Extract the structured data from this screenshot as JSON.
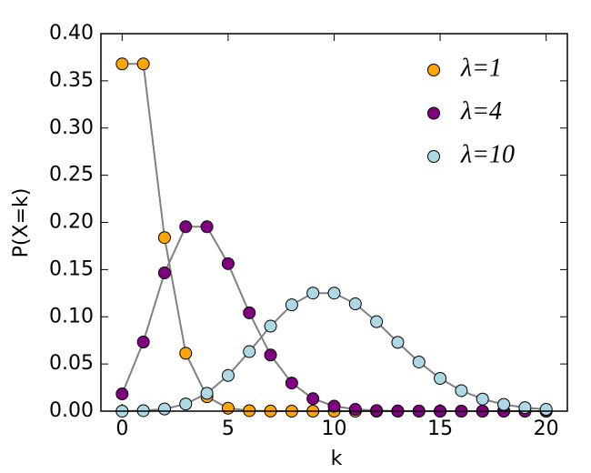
{
  "chart_data": {
    "type": "line",
    "xlabel": "k",
    "ylabel": "P(X=k)",
    "x": [
      0,
      1,
      2,
      3,
      4,
      5,
      6,
      7,
      8,
      9,
      10,
      11,
      12,
      13,
      14,
      15,
      16,
      17,
      18,
      19,
      20
    ],
    "series": [
      {
        "name": "λ=1",
        "color": "#ffa500",
        "values": [
          0.3679,
          0.3679,
          0.1839,
          0.0613,
          0.0153,
          0.0031,
          0.0005,
          0.0001,
          0,
          0,
          0,
          0,
          0,
          0,
          0,
          0,
          0,
          0,
          0,
          0,
          0
        ]
      },
      {
        "name": "λ=4",
        "color": "#800080",
        "values": [
          0.0183,
          0.0733,
          0.1465,
          0.1954,
          0.1954,
          0.1563,
          0.1042,
          0.0595,
          0.0298,
          0.0132,
          0.0053,
          0.0019,
          0.0006,
          0.0002,
          0.0001,
          0,
          0,
          0,
          0,
          0,
          0
        ]
      },
      {
        "name": "λ=10",
        "color": "#add8e6",
        "values": [
          0,
          0.0005,
          0.0023,
          0.0076,
          0.0189,
          0.0378,
          0.0631,
          0.0901,
          0.1126,
          0.1251,
          0.1251,
          0.1137,
          0.0948,
          0.0729,
          0.0521,
          0.0347,
          0.0217,
          0.0128,
          0.0071,
          0.0037,
          0.0019
        ]
      }
    ],
    "line_color": "#808080",
    "xlim": [
      -1,
      21
    ],
    "xticks": [
      0,
      5,
      10,
      15,
      20
    ],
    "ylim": [
      0,
      0.4
    ],
    "yticks": [
      {
        "value": 0,
        "label": "0.00"
      },
      {
        "value": 0.05,
        "label": "0.05"
      },
      {
        "value": 0.1,
        "label": "0.10"
      },
      {
        "value": 0.15,
        "label": "0.15"
      },
      {
        "value": 0.2,
        "label": "0.20"
      },
      {
        "value": 0.25,
        "label": "0.25"
      },
      {
        "value": 0.3,
        "label": "0.30"
      },
      {
        "value": 0.35,
        "label": "0.35"
      },
      {
        "value": 0.4,
        "label": "0.40"
      }
    ],
    "grid": false,
    "legend": "upper right"
  }
}
